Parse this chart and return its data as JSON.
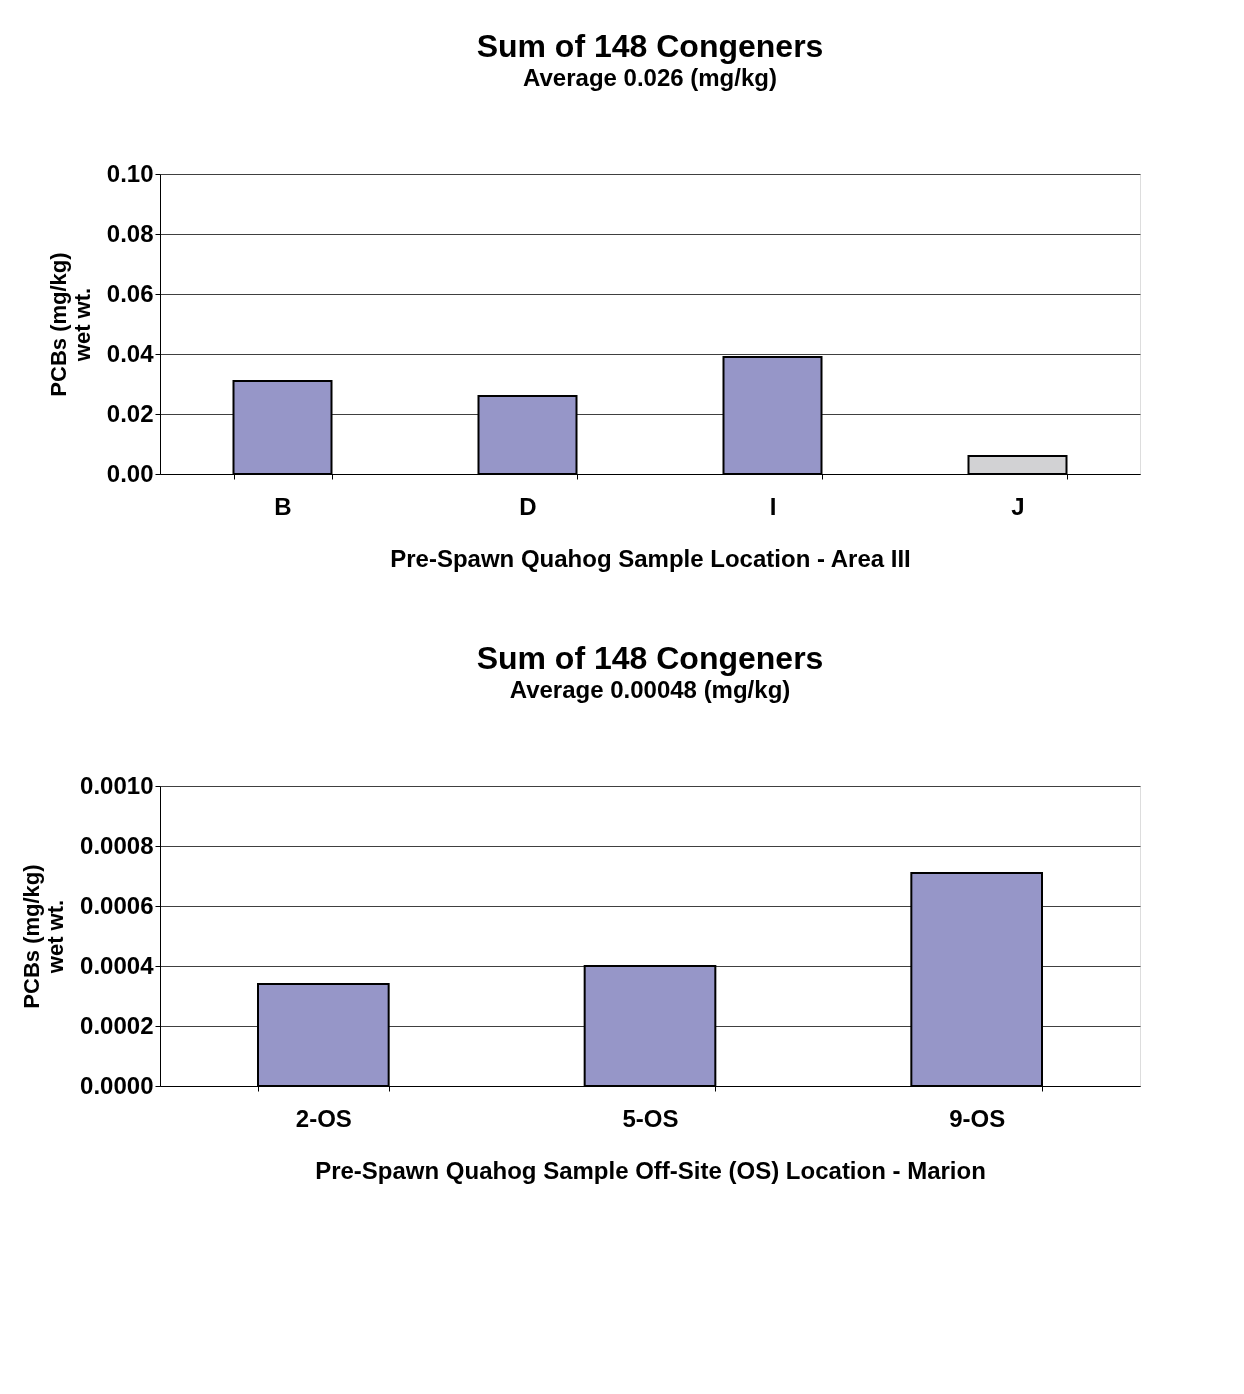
{
  "chart_data": [
    {
      "type": "bar",
      "title": "Sum of 148 Congeners",
      "subtitle": "Average 0.026 (mg/kg)",
      "xlabel": "Pre-Spawn Quahog Sample Location - Area III",
      "ylabel": "PCBs (mg/kg)\nwet wt.",
      "categories": [
        "B",
        "D",
        "I",
        "J"
      ],
      "values": [
        0.031,
        0.026,
        0.039,
        0.006
      ],
      "colors": [
        "#9696c8",
        "#9696c8",
        "#9696c8",
        "#d2d2d4"
      ],
      "ylim": [
        0,
        0.1
      ],
      "yticks": [
        {
          "value": 0,
          "label": "0.00"
        },
        {
          "value": 0.02,
          "label": "0.02"
        },
        {
          "value": 0.04,
          "label": "0.04"
        },
        {
          "value": 0.06,
          "label": "0.06"
        },
        {
          "value": 0.08,
          "label": "0.08"
        },
        {
          "value": 0.1,
          "label": "0.10"
        }
      ],
      "grid": "y",
      "legend": false
    },
    {
      "type": "bar",
      "title": "Sum of 148 Congeners",
      "subtitle": "Average 0.00048 (mg/kg)",
      "xlabel": "Pre-Spawn Quahog Sample Off-Site (OS) Location - Marion",
      "ylabel": "PCBs (mg/kg)\nwet wt.",
      "categories": [
        "2-OS",
        "5-OS",
        "9-OS"
      ],
      "values": [
        0.00034,
        0.0004,
        0.00071
      ],
      "colors": [
        "#9696c8",
        "#9696c8",
        "#9696c8"
      ],
      "ylim": [
        0,
        0.001
      ],
      "yticks": [
        {
          "value": 0,
          "label": "0.0000"
        },
        {
          "value": 0.0002,
          "label": "0.0002"
        },
        {
          "value": 0.0004,
          "label": "0.0004"
        },
        {
          "value": 0.0006,
          "label": "0.0006"
        },
        {
          "value": 0.0008,
          "label": "0.0008"
        },
        {
          "value": 0.001,
          "label": "0.0010"
        }
      ],
      "grid": "y",
      "legend": false
    }
  ]
}
